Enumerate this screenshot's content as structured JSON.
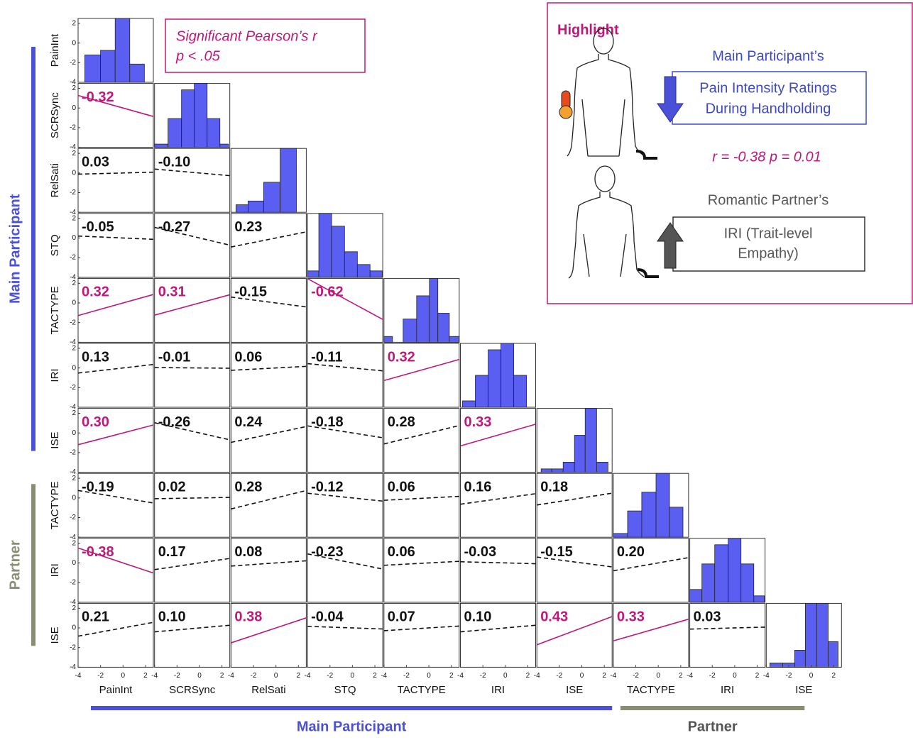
{
  "chart_data": {
    "type": "scatter_matrix",
    "groups": [
      {
        "name": "Main Participant",
        "color": "#4a50d8",
        "variables": [
          "PainInt",
          "SCRSync",
          "RelSati",
          "STQ",
          "TACTYPE",
          "IRI",
          "ISE"
        ]
      },
      {
        "name": "Partner",
        "color": "#8a8c74",
        "variables": [
          "TACTYPE",
          "IRI",
          "ISE"
        ]
      }
    ],
    "xlim": [
      -4,
      2.7
    ],
    "ylim": [
      -4,
      2.5
    ],
    "xticks": [
      -4,
      -2,
      0,
      2
    ],
    "yticks": [
      -4,
      -2,
      0,
      2
    ],
    "legend": {
      "title": "Significant Pearson’s r",
      "subtitle": "p < .05"
    },
    "significant_color": "#c0187a",
    "nonsignificant_color": "#111111",
    "histogram_color": "#5a5ff2",
    "correlations": {
      "values": [
        [
          -0.32
        ],
        [
          0.03,
          -0.1
        ],
        [
          -0.05,
          -0.27,
          0.23
        ],
        [
          0.32,
          0.31,
          -0.15,
          -0.62
        ],
        [
          0.13,
          -0.01,
          0.06,
          -0.11,
          0.32
        ],
        [
          0.3,
          -0.26,
          0.24,
          -0.18,
          0.28,
          0.33
        ],
        [
          -0.19,
          0.02,
          0.28,
          -0.12,
          0.06,
          0.16,
          0.18
        ],
        [
          -0.38,
          0.17,
          0.08,
          -0.23,
          0.06,
          -0.03,
          -0.15,
          0.2
        ],
        [
          0.21,
          0.1,
          0.38,
          -0.04,
          0.07,
          0.1,
          0.43,
          0.33,
          0.03
        ]
      ],
      "value_labels": [
        [
          "-0.32"
        ],
        [
          "0.03",
          "-0.10"
        ],
        [
          "-0.05",
          "-0.27",
          "0.23"
        ],
        [
          "0.32",
          "0.31",
          "-0.15",
          "-0.62"
        ],
        [
          "0.13",
          "-0.01",
          "0.06",
          "-0.11",
          "0.32"
        ],
        [
          "0.30",
          "-0.26",
          "0.24",
          "-0.18",
          "0.28",
          "0.33"
        ],
        [
          "-0.19",
          "0.02",
          "0.28",
          "-0.12",
          "0.06",
          "0.16",
          "0.18"
        ],
        [
          "-0.38",
          "0.17",
          "0.08",
          "-0.23",
          "0.06",
          "-0.03",
          "-0.15",
          "0.20"
        ],
        [
          "0.21",
          "0.10",
          "0.38",
          "-0.04",
          "0.07",
          "0.10",
          "0.43",
          "0.33",
          "0.03"
        ]
      ],
      "significant": [
        [
          true
        ],
        [
          false,
          false
        ],
        [
          false,
          false,
          false
        ],
        [
          true,
          true,
          false,
          true
        ],
        [
          false,
          false,
          false,
          false,
          true
        ],
        [
          true,
          false,
          false,
          false,
          false,
          true
        ],
        [
          false,
          false,
          false,
          false,
          false,
          false,
          false
        ],
        [
          true,
          false,
          false,
          false,
          false,
          false,
          false,
          false
        ],
        [
          false,
          false,
          true,
          false,
          false,
          false,
          true,
          true,
          false
        ]
      ]
    },
    "histograms": [
      {
        "bins": [
          -3.4,
          -2.0,
          -0.7,
          0.6,
          1.9
        ],
        "counts": [
          6,
          7,
          14,
          4
        ]
      },
      {
        "bins": [
          -4,
          -2.8,
          -1.6,
          -0.46,
          0.68,
          1.82,
          2.58
        ],
        "counts": [
          1,
          9,
          18,
          20,
          9,
          1
        ]
      },
      {
        "bins": [
          -3.56,
          -2.48,
          -1.09,
          0.37,
          1.82
        ],
        "counts": [
          2,
          3,
          8,
          17
        ]
      },
      {
        "bins": [
          -4,
          -2.99,
          -1.85,
          -0.7,
          0.44,
          1.57,
          2.65
        ],
        "counts": [
          1,
          10,
          8,
          4,
          2,
          1
        ]
      },
      {
        "bins": [
          -4,
          -3.24,
          -2.29,
          -1.09,
          0.05,
          0.8,
          1.82,
          2.7
        ],
        "counts": [
          1,
          0,
          4,
          8,
          11,
          5,
          1
        ]
      },
      {
        "bins": [
          -3.81,
          -2.67,
          -1.53,
          -0.39,
          0.75,
          1.89
        ],
        "counts": [
          1,
          5,
          9,
          10,
          5
        ]
      },
      {
        "bins": [
          -3.62,
          -2.67,
          -1.66,
          -0.65,
          0.3,
          1.32,
          2.33
        ],
        "counts": [
          1,
          1,
          3,
          11,
          19,
          3
        ]
      },
      {
        "bins": [
          -4,
          -2.73,
          -1.47,
          -0.2,
          1.0,
          2.2
        ],
        "counts": [
          1,
          7,
          12,
          17,
          8
        ]
      },
      {
        "bins": [
          -4,
          -2.92,
          -1.78,
          -0.58,
          0.56,
          1.7,
          2.65
        ],
        "counts": [
          2,
          6,
          9,
          10,
          6,
          1
        ]
      },
      {
        "bins": [
          -3.68,
          -2.54,
          -1.47,
          -0.52,
          0.49,
          1.51,
          2.39
        ],
        "counts": [
          1,
          1,
          4,
          15,
          15,
          6
        ]
      }
    ]
  },
  "highlight": {
    "title": "Highlight",
    "participant_label": "Main Participant’s",
    "participant_measure": [
      "Pain Intensity Ratings",
      "During Handholding"
    ],
    "stat": "r = -0.38 p = 0.01",
    "partner_label": "Romantic Partner’s",
    "partner_measure": [
      "IRI (Trait-level",
      "Empathy)"
    ]
  }
}
